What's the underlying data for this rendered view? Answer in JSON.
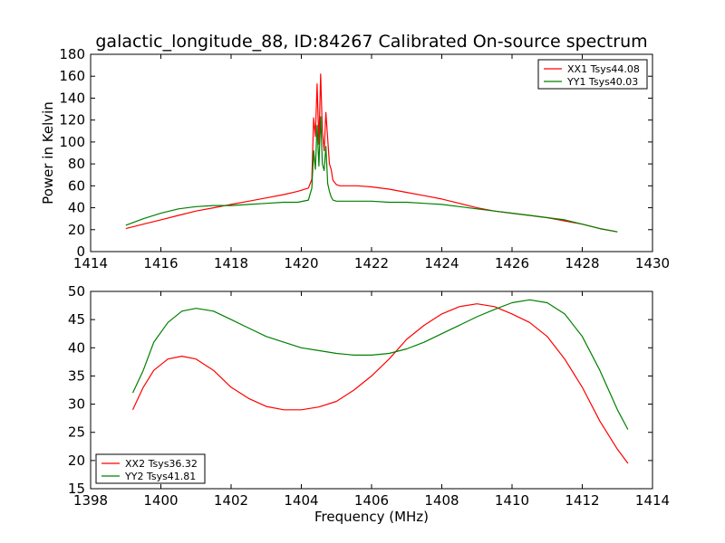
{
  "chart_data": [
    {
      "type": "line",
      "title": "galactic_longitude_88, ID:84267 Calibrated On-source spectrum",
      "xlabel": "",
      "ylabel": "Power in Kelvin",
      "xlim": [
        1414,
        1430
      ],
      "ylim": [
        0,
        180
      ],
      "xticks": [
        1414,
        1416,
        1418,
        1420,
        1422,
        1424,
        1426,
        1428,
        1430
      ],
      "yticks": [
        0,
        20,
        40,
        60,
        80,
        100,
        120,
        140,
        160,
        180
      ],
      "grid": false,
      "legend_position": "top-right",
      "series": [
        {
          "name": "XX1 Tsys44.08",
          "color": "#ff0000",
          "x": [
            1415.0,
            1415.5,
            1416.0,
            1416.5,
            1417.0,
            1417.5,
            1418.0,
            1418.5,
            1419.0,
            1419.5,
            1419.9,
            1420.2,
            1420.3,
            1420.35,
            1420.4,
            1420.45,
            1420.5,
            1420.55,
            1420.6,
            1420.65,
            1420.7,
            1420.75,
            1420.8,
            1420.85,
            1420.9,
            1421.0,
            1421.1,
            1421.3,
            1421.6,
            1422.0,
            1422.5,
            1423.0,
            1423.5,
            1424.0,
            1424.5,
            1425.0,
            1425.5,
            1426.0,
            1426.5,
            1427.0,
            1427.5,
            1428.0,
            1428.5,
            1429.0
          ],
          "y": [
            21,
            25,
            29,
            33,
            37,
            40,
            43,
            46,
            49,
            52,
            55,
            58,
            66,
            122,
            105,
            153,
            98,
            162,
            110,
            92,
            127,
            103,
            80,
            75,
            65,
            61,
            60,
            60,
            60,
            59,
            57,
            54,
            51,
            48,
            44,
            40,
            37,
            35,
            33,
            31,
            28,
            25,
            21,
            18
          ]
        },
        {
          "name": "YY1 Tsys40.03",
          "color": "#008000",
          "x": [
            1415.0,
            1415.5,
            1416.0,
            1416.5,
            1417.0,
            1417.5,
            1418.0,
            1418.5,
            1419.0,
            1419.5,
            1419.9,
            1420.2,
            1420.3,
            1420.35,
            1420.4,
            1420.45,
            1420.5,
            1420.55,
            1420.6,
            1420.65,
            1420.7,
            1420.75,
            1420.8,
            1420.85,
            1420.9,
            1421.0,
            1421.1,
            1421.3,
            1421.6,
            1422.0,
            1422.5,
            1423.0,
            1423.5,
            1424.0,
            1424.5,
            1425.0,
            1425.5,
            1426.0,
            1426.5,
            1427.0,
            1427.5,
            1428.0,
            1428.5,
            1429.0
          ],
          "y": [
            24,
            30,
            35,
            39,
            41,
            42,
            42,
            43,
            44,
            45,
            45,
            47,
            58,
            92,
            75,
            115,
            78,
            123,
            80,
            74,
            96,
            62,
            55,
            50,
            47,
            46,
            46,
            46,
            46,
            46,
            45,
            45,
            44,
            43,
            41,
            39,
            37,
            35,
            33,
            31,
            29,
            25,
            21,
            18
          ]
        }
      ]
    },
    {
      "type": "line",
      "title": "",
      "xlabel": "Frequency (MHz)",
      "ylabel": "",
      "xlim": [
        1398,
        1414
      ],
      "ylim": [
        15,
        50
      ],
      "xticks": [
        1398,
        1400,
        1402,
        1404,
        1406,
        1408,
        1410,
        1412,
        1414
      ],
      "yticks": [
        15,
        20,
        25,
        30,
        35,
        40,
        45,
        50
      ],
      "grid": false,
      "legend_position": "bottom-left",
      "series": [
        {
          "name": "XX2 Tsys36.32",
          "color": "#ff0000",
          "x": [
            1399.2,
            1399.5,
            1399.8,
            1400.2,
            1400.6,
            1401.0,
            1401.5,
            1402.0,
            1402.5,
            1403.0,
            1403.5,
            1404.0,
            1404.5,
            1405.0,
            1405.5,
            1406.0,
            1406.5,
            1407.0,
            1407.5,
            1408.0,
            1408.5,
            1409.0,
            1409.5,
            1410.0,
            1410.5,
            1411.0,
            1411.5,
            1412.0,
            1412.5,
            1413.0,
            1413.3
          ],
          "y": [
            29,
            33,
            36,
            38,
            38.5,
            38,
            36,
            33,
            31,
            29.6,
            29,
            29,
            29.5,
            30.5,
            32.5,
            35,
            38,
            41.5,
            44,
            46,
            47.3,
            47.8,
            47.3,
            46,
            44.5,
            42,
            38,
            33,
            27,
            22,
            19.5
          ]
        },
        {
          "name": "YY2 Tsys41.81",
          "color": "#008000",
          "x": [
            1399.2,
            1399.5,
            1399.8,
            1400.2,
            1400.6,
            1401.0,
            1401.5,
            1402.0,
            1402.5,
            1403.0,
            1403.5,
            1404.0,
            1404.5,
            1405.0,
            1405.5,
            1406.0,
            1406.5,
            1407.0,
            1407.5,
            1408.0,
            1408.5,
            1409.0,
            1409.5,
            1410.0,
            1410.5,
            1411.0,
            1411.5,
            1412.0,
            1412.5,
            1413.0,
            1413.3
          ],
          "y": [
            32,
            36,
            41,
            44.5,
            46.5,
            47,
            46.5,
            45,
            43.5,
            42,
            41,
            40,
            39.5,
            39,
            38.7,
            38.7,
            39,
            39.8,
            41,
            42.5,
            44,
            45.5,
            46.8,
            48,
            48.5,
            48,
            46,
            42,
            36,
            29,
            25.5
          ]
        }
      ]
    }
  ]
}
